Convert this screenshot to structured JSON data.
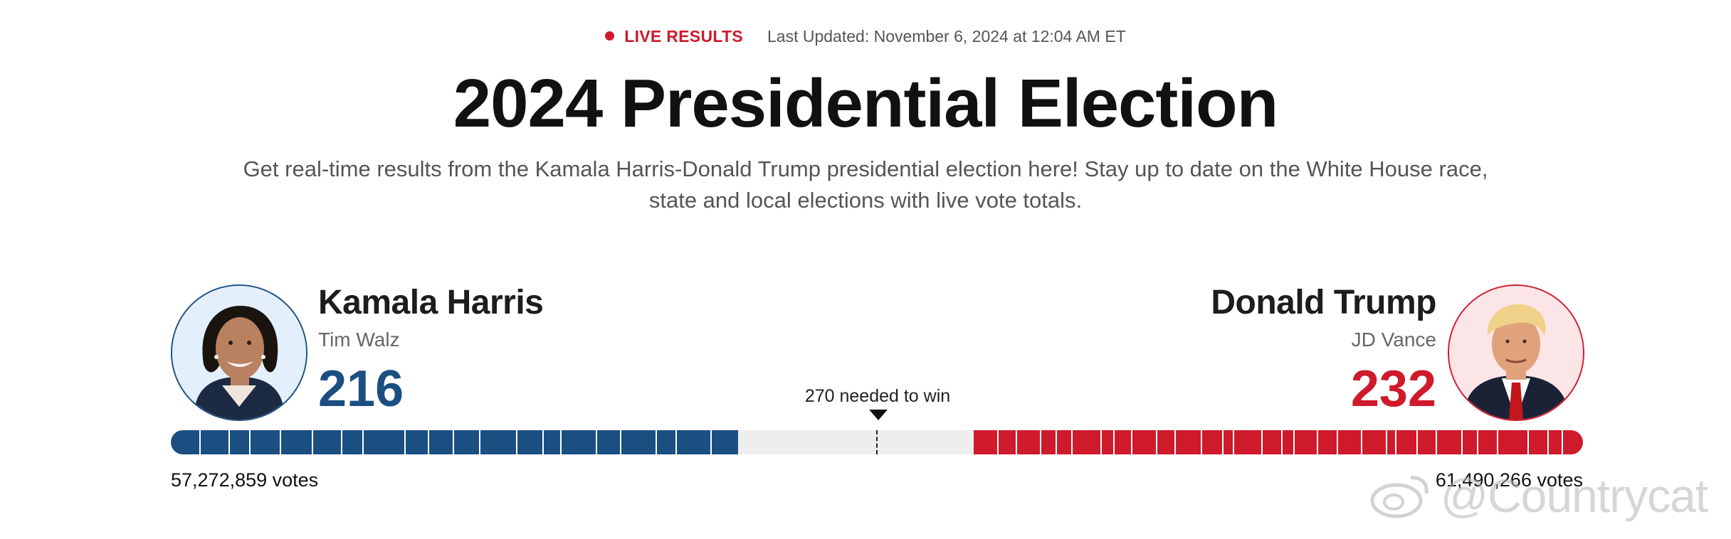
{
  "status": {
    "live_label": "LIVE RESULTS",
    "updated": "Last Updated: November 6, 2024 at 12:04 AM ET"
  },
  "headline": {
    "title": "2024 Presidential Election",
    "subtitle": "Get real-time results from the Kamala Harris-Donald Trump presidential election here! Stay up to date on the White House race, state and local elections with live vote totals."
  },
  "colors": {
    "democrat": "#1b4f82",
    "republican": "#cf1a2c",
    "live": "#cf1a2c",
    "uncalled": "#eeeeee"
  },
  "candidates": {
    "left": {
      "name": "Kamala Harris",
      "running_mate": "Tim Walz",
      "electoral_votes": "216",
      "popular_votes": "57,272,859 votes",
      "photo_icon": "kamala-harris-photo"
    },
    "right": {
      "name": "Donald Trump",
      "running_mate": "JD Vance",
      "electoral_votes": "232",
      "popular_votes": "61,490,266 votes",
      "photo_icon": "donald-trump-photo"
    }
  },
  "race_bar": {
    "total_electoral_votes": 538,
    "dem_electoral_votes": 216,
    "rep_electoral_votes": 232,
    "threshold": 270,
    "threshold_label": "270 needed to win"
  },
  "watermark": {
    "text": "@Countrycat",
    "icon": "weibo-logo-icon"
  }
}
